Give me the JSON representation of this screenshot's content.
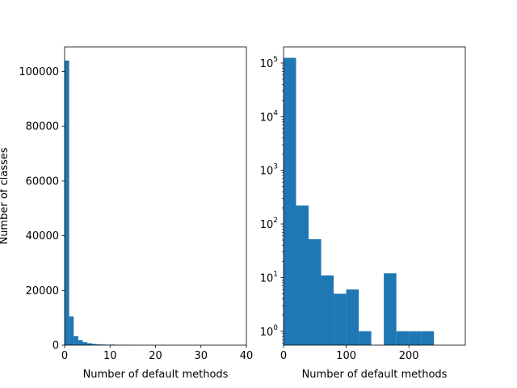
{
  "chart_data": [
    {
      "type": "bar",
      "title": "",
      "xlabel": "Number of default methods",
      "ylabel": "Number of classes",
      "xlim": [
        0,
        40
      ],
      "ylim": [
        0,
        109000
      ],
      "yscale": "linear",
      "xticks": [
        0,
        10,
        20,
        30,
        40
      ],
      "xtick_labels": [
        "0",
        "10",
        "20",
        "30",
        "40"
      ],
      "yticks": [
        0,
        20000,
        40000,
        60000,
        80000,
        100000
      ],
      "ytick_labels": [
        "0",
        "20000",
        "40000",
        "60000",
        "80000",
        "100000"
      ],
      "grid": false,
      "color": "#1f77b4",
      "bars": [
        {
          "x0": 0,
          "x1": 1,
          "value": 104000
        },
        {
          "x0": 1,
          "x1": 2,
          "value": 10500
        },
        {
          "x0": 2,
          "x1": 3,
          "value": 3300
        },
        {
          "x0": 3,
          "x1": 4,
          "value": 1800
        },
        {
          "x0": 4,
          "x1": 5,
          "value": 1100
        },
        {
          "x0": 5,
          "x1": 6,
          "value": 700
        },
        {
          "x0": 6,
          "x1": 7,
          "value": 450
        },
        {
          "x0": 7,
          "x1": 8,
          "value": 320
        },
        {
          "x0": 8,
          "x1": 9,
          "value": 230
        },
        {
          "x0": 9,
          "x1": 10,
          "value": 170
        },
        {
          "x0": 10,
          "x1": 11,
          "value": 220
        },
        {
          "x0": 11,
          "x1": 12,
          "value": 90
        },
        {
          "x0": 12,
          "x1": 13,
          "value": 60
        },
        {
          "x0": 13,
          "x1": 14,
          "value": 40
        },
        {
          "x0": 14,
          "x1": 15,
          "value": 30
        }
      ]
    },
    {
      "type": "bar",
      "title": "",
      "xlabel": "Number of default methods",
      "ylabel": "",
      "xlim": [
        0,
        290
      ],
      "ylim": [
        0.55,
        200000
      ],
      "yscale": "log",
      "xticks": [
        0,
        100,
        200
      ],
      "xtick_labels": [
        "0",
        "100",
        "200"
      ],
      "yticks": [
        1,
        10,
        100,
        1000,
        10000,
        100000
      ],
      "ytick_labels": [
        {
          "base": "10",
          "exp": "0"
        },
        {
          "base": "10",
          "exp": "1"
        },
        {
          "base": "10",
          "exp": "2"
        },
        {
          "base": "10",
          "exp": "3"
        },
        {
          "base": "10",
          "exp": "4"
        },
        {
          "base": "10",
          "exp": "5"
        }
      ],
      "grid": false,
      "color": "#1f77b4",
      "bars": [
        {
          "x0": 0,
          "x1": 20,
          "value": 125000
        },
        {
          "x0": 20,
          "x1": 40,
          "value": 220
        },
        {
          "x0": 40,
          "x1": 60,
          "value": 52
        },
        {
          "x0": 60,
          "x1": 80,
          "value": 11
        },
        {
          "x0": 80,
          "x1": 100,
          "value": 5
        },
        {
          "x0": 100,
          "x1": 120,
          "value": 6
        },
        {
          "x0": 120,
          "x1": 140,
          "value": 1
        },
        {
          "x0": 160,
          "x1": 180,
          "value": 12
        },
        {
          "x0": 180,
          "x1": 200,
          "value": 1
        },
        {
          "x0": 200,
          "x1": 220,
          "value": 1
        },
        {
          "x0": 220,
          "x1": 240,
          "value": 1
        }
      ]
    }
  ]
}
